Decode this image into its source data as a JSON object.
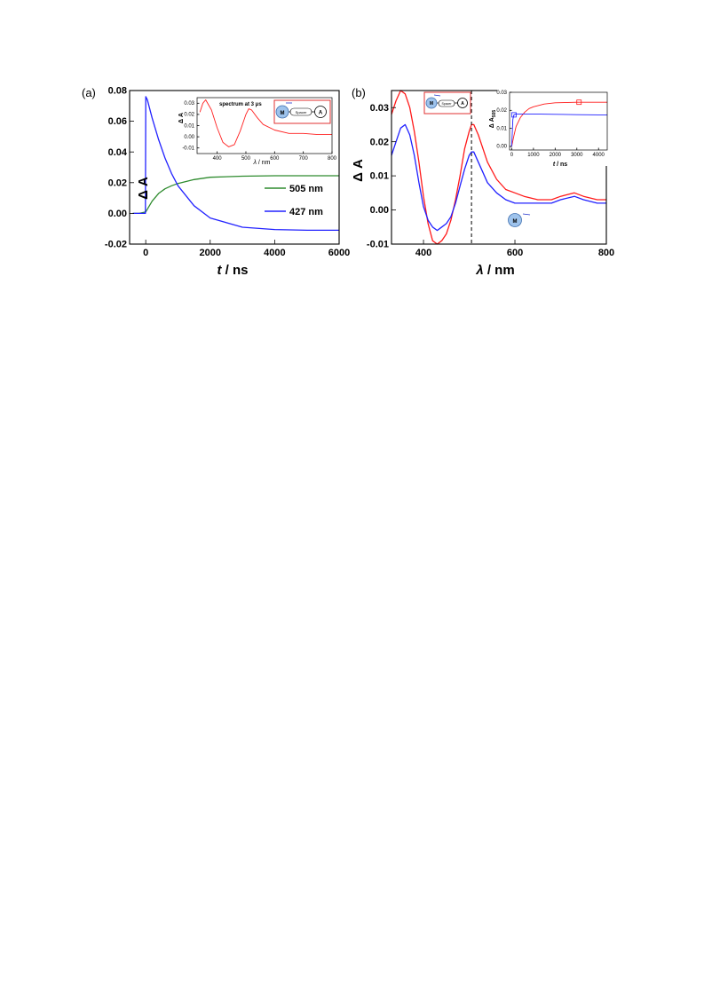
{
  "figure": {
    "panels": {
      "a": {
        "label": "(a)",
        "xlabel_italic": "t",
        "xlabel_rest": " / ns",
        "ylabel": "Δ A",
        "inset": {
          "title": "spectrum at 3 μs",
          "xlabel_italic": "λ",
          "xlabel_rest": " / nm",
          "ylabel": "Δ A",
          "scheme": {
            "left": "M",
            "middle": "Spacer",
            "right": "A"
          }
        }
      },
      "b": {
        "label": "(b)",
        "xlabel_italic": "λ",
        "xlabel_rest": " / nm",
        "ylabel": "Δ A",
        "marker": "M",
        "inset": {
          "xlabel_italic": "t",
          "xlabel_rest": " / ns",
          "ylabel": "Δ A",
          "ylabel_sub": "505",
          "scheme": {
            "left": "M",
            "middle": "Spacer",
            "right": "A"
          }
        }
      }
    }
  },
  "chart_data": [
    {
      "id": "a-main",
      "type": "line",
      "xlim": [
        -500,
        6000
      ],
      "ylim": [
        -0.02,
        0.08
      ],
      "xticks": [
        0,
        2000,
        4000,
        6000
      ],
      "yticks": [
        -0.02,
        0.0,
        0.02,
        0.04,
        0.06,
        0.08
      ],
      "colors": {
        "505": "#2e8b2e",
        "427": "#2222ff"
      },
      "series": [
        {
          "name": "505 nm",
          "color": "#2e8b2e",
          "x": [
            -400,
            -200,
            0,
            200,
            400,
            600,
            800,
            1000,
            1500,
            2000,
            3000,
            4000,
            5000,
            6000
          ],
          "y": [
            0.0,
            0.0,
            0.001,
            0.008,
            0.013,
            0.016,
            0.018,
            0.0195,
            0.022,
            0.0235,
            0.0242,
            0.0245,
            0.0245,
            0.0245
          ]
        },
        {
          "name": "427 nm",
          "color": "#2222ff",
          "x": [
            -400,
            -200,
            -10,
            0,
            50,
            200,
            400,
            600,
            800,
            1000,
            1500,
            2000,
            3000,
            4000,
            5000,
            6000
          ],
          "y": [
            0.0,
            0.0,
            0.0,
            0.076,
            0.074,
            0.062,
            0.048,
            0.036,
            0.026,
            0.018,
            0.005,
            -0.003,
            -0.009,
            -0.0105,
            -0.011,
            -0.011
          ]
        }
      ]
    },
    {
      "id": "a-inset",
      "type": "line",
      "xlim": [
        330,
        800
      ],
      "ylim": [
        -0.015,
        0.035
      ],
      "xticks": [
        400,
        500,
        600,
        700,
        800
      ],
      "yticks": [
        -0.01,
        0.0,
        0.01,
        0.02,
        0.03
      ],
      "series": [
        {
          "color": "#ff2020",
          "x": [
            340,
            350,
            360,
            380,
            400,
            420,
            440,
            460,
            480,
            500,
            510,
            520,
            540,
            560,
            600,
            650,
            700,
            750,
            800
          ],
          "y": [
            0.022,
            0.03,
            0.033,
            0.024,
            0.008,
            -0.005,
            -0.009,
            -0.007,
            0.005,
            0.02,
            0.025,
            0.024,
            0.017,
            0.011,
            0.006,
            0.003,
            0.003,
            0.002,
            0.002
          ]
        }
      ]
    },
    {
      "id": "b-main",
      "type": "line",
      "xlim": [
        330,
        800
      ],
      "ylim": [
        -0.01,
        0.035
      ],
      "xticks": [
        400,
        600,
        800
      ],
      "yticks": [
        -0.01,
        0.0,
        0.01,
        0.02,
        0.03
      ],
      "dashed_x": 505,
      "series": [
        {
          "color": "#ff1a1a",
          "x": [
            330,
            340,
            350,
            360,
            370,
            380,
            390,
            400,
            410,
            420,
            430,
            440,
            450,
            460,
            470,
            480,
            490,
            500,
            505,
            510,
            520,
            530,
            540,
            560,
            580,
            600,
            620,
            650,
            680,
            700,
            730,
            750,
            780,
            800
          ],
          "y": [
            0.028,
            0.032,
            0.035,
            0.034,
            0.03,
            0.023,
            0.014,
            0.004,
            -0.004,
            -0.009,
            -0.01,
            -0.009,
            -0.007,
            -0.003,
            0.003,
            0.01,
            0.018,
            0.023,
            0.025,
            0.025,
            0.022,
            0.018,
            0.014,
            0.009,
            0.006,
            0.005,
            0.004,
            0.003,
            0.003,
            0.004,
            0.005,
            0.004,
            0.003,
            0.003
          ]
        },
        {
          "color": "#2020ff",
          "x": [
            330,
            340,
            350,
            360,
            370,
            380,
            390,
            400,
            410,
            420,
            430,
            440,
            450,
            460,
            470,
            480,
            490,
            500,
            505,
            510,
            520,
            530,
            540,
            560,
            580,
            600,
            620,
            650,
            680,
            700,
            730,
            750,
            780,
            800
          ],
          "y": [
            0.016,
            0.02,
            0.024,
            0.025,
            0.022,
            0.016,
            0.008,
            0.001,
            -0.003,
            -0.005,
            -0.006,
            -0.005,
            -0.004,
            -0.002,
            0.002,
            0.007,
            0.012,
            0.016,
            0.017,
            0.017,
            0.014,
            0.011,
            0.008,
            0.005,
            0.003,
            0.002,
            0.002,
            0.002,
            0.002,
            0.003,
            0.004,
            0.003,
            0.002,
            0.002
          ]
        }
      ]
    },
    {
      "id": "b-inset",
      "type": "line",
      "xlim": [
        -100,
        4400
      ],
      "ylim": [
        -0.002,
        0.03
      ],
      "xticks": [
        0,
        1000,
        2000,
        3000,
        4000
      ],
      "yticks": [
        0.0,
        0.01,
        0.02,
        0.03
      ],
      "series": [
        {
          "color": "#ff1a1a",
          "x": [
            -100,
            0,
            100,
            200,
            400,
            600,
            800,
            1000,
            1500,
            2000,
            3000,
            4000,
            4400
          ],
          "y": [
            0.0,
            0.0,
            0.006,
            0.011,
            0.016,
            0.019,
            0.021,
            0.022,
            0.0235,
            0.0242,
            0.0245,
            0.0245,
            0.0245
          ]
        },
        {
          "color": "#2020ff",
          "x": [
            -100,
            0,
            50,
            100,
            200,
            400,
            1000,
            2000,
            3000,
            4000,
            4400
          ],
          "y": [
            0.0,
            0.0,
            0.015,
            0.0175,
            0.018,
            0.018,
            0.018,
            0.0178,
            0.0176,
            0.0175,
            0.0175
          ]
        }
      ]
    }
  ]
}
